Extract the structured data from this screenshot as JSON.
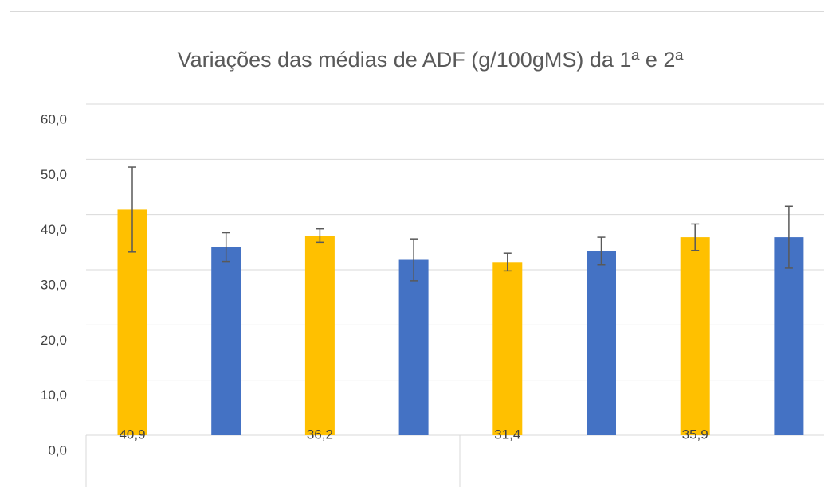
{
  "chart_data": {
    "type": "bar",
    "title": "Variações das médias de ADF (g/100gMS) da 1ª e 2ª",
    "categories": [
      null,
      null,
      null,
      null,
      null,
      null,
      null,
      null
    ],
    "values": [
      40.9,
      34.1,
      36.2,
      31.8,
      31.4,
      33.4,
      35.9,
      35.9
    ],
    "errors": [
      7.7,
      2.6,
      1.2,
      3.8,
      1.6,
      2.5,
      2.4,
      5.6
    ],
    "value_labels": [
      "40,9",
      null,
      "36,2",
      null,
      "31,4",
      null,
      "35,9",
      null
    ],
    "colors": [
      "#ffc000",
      "#4472c4",
      "#ffc000",
      "#4472c4",
      "#ffc000",
      "#4472c4",
      "#ffc000",
      "#4472c4"
    ],
    "error_color": "#595959",
    "ylim": [
      0,
      60
    ],
    "yticks": [
      {
        "value": 0,
        "label": "0,0"
      },
      {
        "value": 10,
        "label": "10,0"
      },
      {
        "value": 20,
        "label": "20,0"
      },
      {
        "value": 30,
        "label": "30,0"
      },
      {
        "value": 40,
        "label": "40,0"
      },
      {
        "value": 50,
        "label": "50,0"
      },
      {
        "value": 60,
        "label": "60,0"
      }
    ],
    "grid": true
  }
}
